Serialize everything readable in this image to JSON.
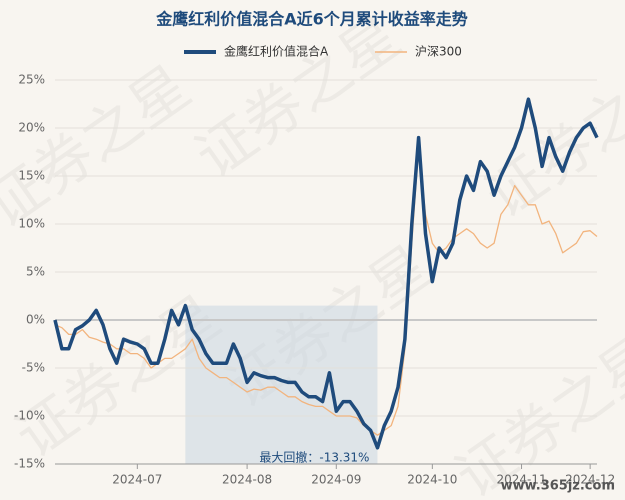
{
  "chart_data": {
    "type": "line",
    "title": "金鹰红利价值混合A近6个月累计收益率走势",
    "categories": [
      null,
      null,
      null,
      null,
      null,
      null,
      null,
      null,
      null,
      null,
      null,
      null,
      "2024-07",
      null,
      null,
      null,
      null,
      null,
      null,
      null,
      null,
      null,
      null,
      null,
      null,
      null,
      null,
      null,
      "2024-08",
      null,
      null,
      null,
      null,
      null,
      null,
      null,
      null,
      null,
      null,
      null,
      null,
      "2024-09",
      null,
      null,
      null,
      null,
      null,
      null,
      null,
      null,
      null,
      null,
      null,
      null,
      null,
      "2024-10",
      null,
      null,
      null,
      null,
      null,
      null,
      null,
      null,
      null,
      null,
      null,
      null,
      "2024-11",
      null,
      null,
      null,
      null,
      null,
      null,
      null,
      null,
      null,
      "2024-12",
      null
    ],
    "series": [
      {
        "name": "金鹰红利价值混合A",
        "color": "#1f4b7c",
        "values": [
          0,
          -3,
          -3,
          -1,
          -0.6,
          0,
          1,
          -0.5,
          -3,
          -4.5,
          -2,
          -2.3,
          -2.5,
          -3,
          -4.5,
          -4.5,
          -2,
          1,
          -0.5,
          1.5,
          -1,
          -2,
          -3.5,
          -4.5,
          -4.5,
          -4.5,
          -2.5,
          -4,
          -6.5,
          -5.5,
          -5.8,
          -6,
          -6,
          -6.3,
          -6.5,
          -6.5,
          -7.5,
          -8,
          -8,
          -8.5,
          -5.5,
          -9.5,
          -8.5,
          -8.5,
          -9.5,
          -10.8,
          -11.5,
          -13.31,
          -11,
          -9.5,
          -7,
          -2,
          10,
          19,
          9,
          4,
          7.5,
          6.5,
          8,
          12.5,
          15,
          13.5,
          16.5,
          15.5,
          13,
          15,
          16.5,
          18,
          20,
          23,
          20,
          16,
          19,
          17,
          15.5,
          17.5,
          19,
          20,
          20.5,
          19
        ]
      },
      {
        "name": "沪深300",
        "color": "#f2b47e",
        "values": [
          -0.5,
          -0.8,
          -1.5,
          -1.5,
          -1,
          -1.8,
          -2,
          -2.3,
          -2.5,
          -3,
          -3,
          -3.5,
          -3.5,
          -4,
          -5,
          -4.5,
          -4,
          -4,
          -3.5,
          -3,
          -2,
          -4,
          -5,
          -5.5,
          -6,
          -6,
          -6.5,
          -7,
          -7.5,
          -7.2,
          -7.3,
          -7,
          -7,
          -7.5,
          -8,
          -8,
          -8.5,
          -8.8,
          -9,
          -9,
          -9.5,
          -10,
          -10,
          -10,
          -10.2,
          -11,
          -11.5,
          -12,
          -11.5,
          -11,
          -9,
          -3,
          8,
          18,
          11,
          8,
          7,
          7.5,
          8.5,
          9,
          9.5,
          9,
          8,
          7.5,
          8,
          11,
          12,
          14,
          13,
          12,
          12,
          10,
          10.3,
          9,
          7,
          7.5,
          8,
          9.2,
          9.3,
          8.7
        ]
      }
    ],
    "ylim": [
      -15,
      25
    ],
    "yticks": [
      {
        "value": -15,
        "label": "-15%"
      },
      {
        "value": -10,
        "label": "-10%"
      },
      {
        "value": -5,
        "label": "-5%"
      },
      {
        "value": 0,
        "label": "0%"
      },
      {
        "value": 5,
        "label": "5%"
      },
      {
        "value": 10,
        "label": "10%"
      },
      {
        "value": 15,
        "label": "15%"
      },
      {
        "value": 20,
        "label": "20%"
      },
      {
        "value": 25,
        "label": "25%"
      }
    ],
    "grid": true,
    "legend": "top",
    "annotation": "最大回撤：-13.31%",
    "watermark": "证券之星",
    "source_mark": "www.365jz.com"
  }
}
